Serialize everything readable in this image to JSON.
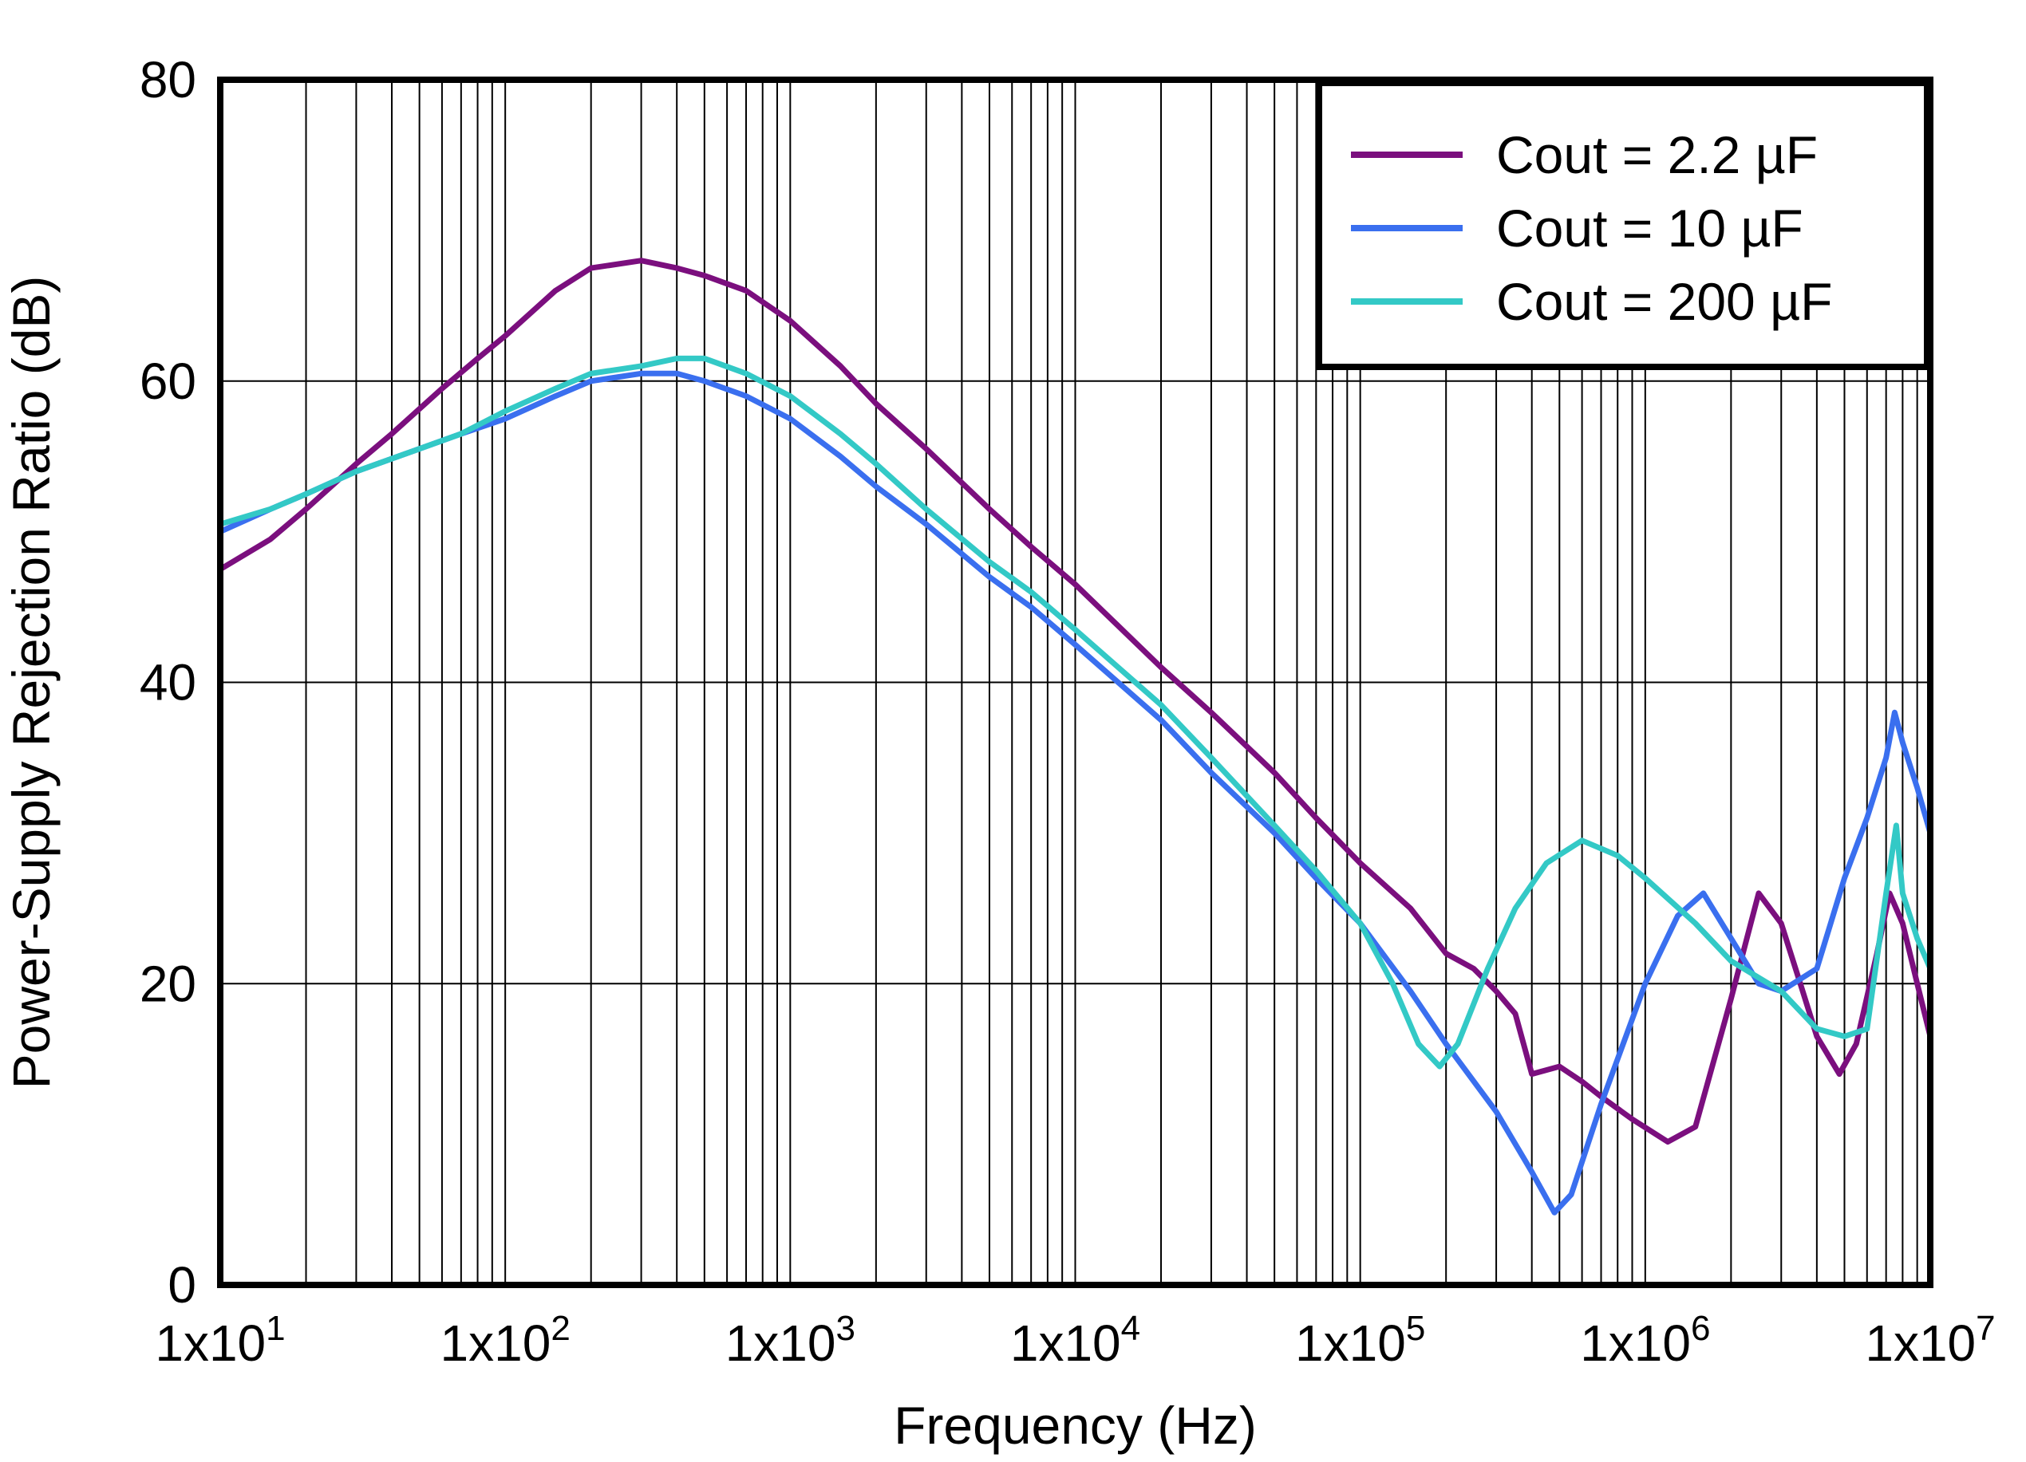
{
  "chart_data": {
    "type": "line",
    "title": "",
    "xlabel": "Frequency (Hz)",
    "ylabel": "Power-Supply Rejection Ratio (dB)",
    "xscale": "log",
    "xlim": [
      10,
      10000000
    ],
    "ylim": [
      0,
      80
    ],
    "grid": true,
    "legend_position": "top-right",
    "x_ticks": [
      {
        "value": 10,
        "base": "1x10",
        "exp": "1"
      },
      {
        "value": 100,
        "base": "1x10",
        "exp": "2"
      },
      {
        "value": 1000,
        "base": "1x10",
        "exp": "3"
      },
      {
        "value": 10000,
        "base": "1x10",
        "exp": "4"
      },
      {
        "value": 100000,
        "base": "1x10",
        "exp": "5"
      },
      {
        "value": 1000000,
        "base": "1x10",
        "exp": "6"
      },
      {
        "value": 10000000,
        "base": "1x10",
        "exp": "7"
      }
    ],
    "y_ticks": [
      {
        "value": 0,
        "label": "0"
      },
      {
        "value": 20,
        "label": "20"
      },
      {
        "value": 40,
        "label": "40"
      },
      {
        "value": 60,
        "label": "60"
      },
      {
        "value": 80,
        "label": "80"
      }
    ],
    "series": [
      {
        "name": "Cout = 2.2 µF",
        "color": "#7B0F7E",
        "points": [
          [
            10,
            47.5
          ],
          [
            15,
            49.5
          ],
          [
            20,
            51.5
          ],
          [
            30,
            54.5
          ],
          [
            40,
            56.5
          ],
          [
            60,
            59.5
          ],
          [
            80,
            61.5
          ],
          [
            100,
            63
          ],
          [
            150,
            66
          ],
          [
            200,
            67.5
          ],
          [
            300,
            68
          ],
          [
            400,
            67.5
          ],
          [
            500,
            67
          ],
          [
            700,
            66
          ],
          [
            1000,
            64
          ],
          [
            1500,
            61
          ],
          [
            2000,
            58.5
          ],
          [
            3000,
            55.5
          ],
          [
            5000,
            51.5
          ],
          [
            7000,
            49
          ],
          [
            10000,
            46.5
          ],
          [
            20000,
            41
          ],
          [
            30000,
            38
          ],
          [
            50000,
            34
          ],
          [
            70000,
            31
          ],
          [
            100000,
            28
          ],
          [
            150000,
            25
          ],
          [
            200000,
            22
          ],
          [
            250000,
            21
          ],
          [
            300000,
            19.5
          ],
          [
            350000,
            18
          ],
          [
            400000,
            14
          ],
          [
            500000,
            14.5
          ],
          [
            600000,
            13.5
          ],
          [
            700000,
            12.5
          ],
          [
            900000,
            11
          ],
          [
            1200000,
            9.5
          ],
          [
            1500000,
            10.5
          ],
          [
            2000000,
            19
          ],
          [
            2500000,
            26
          ],
          [
            3000000,
            24
          ],
          [
            3500000,
            20
          ],
          [
            4000000,
            16.5
          ],
          [
            4800000,
            14
          ],
          [
            5500000,
            16
          ],
          [
            6500000,
            22
          ],
          [
            7200000,
            26
          ],
          [
            8000000,
            24
          ],
          [
            9000000,
            20
          ],
          [
            10000000,
            16.5
          ]
        ]
      },
      {
        "name": "Cout = 10 µF",
        "color": "#3A6FEF",
        "points": [
          [
            10,
            50
          ],
          [
            15,
            51.5
          ],
          [
            20,
            52.5
          ],
          [
            30,
            54
          ],
          [
            50,
            55.5
          ],
          [
            70,
            56.5
          ],
          [
            100,
            57.5
          ],
          [
            150,
            59
          ],
          [
            200,
            60
          ],
          [
            300,
            60.5
          ],
          [
            400,
            60.5
          ],
          [
            500,
            60
          ],
          [
            700,
            59
          ],
          [
            1000,
            57.5
          ],
          [
            1500,
            55
          ],
          [
            2000,
            53
          ],
          [
            3000,
            50.5
          ],
          [
            5000,
            47
          ],
          [
            7000,
            45
          ],
          [
            10000,
            42.5
          ],
          [
            20000,
            37.5
          ],
          [
            30000,
            34
          ],
          [
            50000,
            30
          ],
          [
            70000,
            27
          ],
          [
            100000,
            24
          ],
          [
            150000,
            19.5
          ],
          [
            200000,
            16
          ],
          [
            300000,
            11.5
          ],
          [
            400000,
            7.5
          ],
          [
            480000,
            4.8
          ],
          [
            550000,
            6
          ],
          [
            700000,
            12
          ],
          [
            1000000,
            20
          ],
          [
            1300000,
            24.5
          ],
          [
            1600000,
            26
          ],
          [
            2000000,
            23
          ],
          [
            2500000,
            20
          ],
          [
            3000000,
            19.5
          ],
          [
            4000000,
            21
          ],
          [
            5000000,
            27
          ],
          [
            6000000,
            31
          ],
          [
            7000000,
            35
          ],
          [
            7500000,
            38
          ],
          [
            8000000,
            36
          ],
          [
            9000000,
            33
          ],
          [
            10000000,
            30
          ]
        ]
      },
      {
        "name": "Cout = 200 µF",
        "color": "#33C9C6",
        "points": [
          [
            10,
            50.5
          ],
          [
            15,
            51.5
          ],
          [
            20,
            52.5
          ],
          [
            30,
            54
          ],
          [
            50,
            55.5
          ],
          [
            70,
            56.5
          ],
          [
            100,
            58
          ],
          [
            150,
            59.5
          ],
          [
            200,
            60.5
          ],
          [
            300,
            61
          ],
          [
            400,
            61.5
          ],
          [
            500,
            61.5
          ],
          [
            700,
            60.5
          ],
          [
            1000,
            59
          ],
          [
            1500,
            56.5
          ],
          [
            2000,
            54.5
          ],
          [
            3000,
            51.5
          ],
          [
            5000,
            48
          ],
          [
            7000,
            46
          ],
          [
            10000,
            43.5
          ],
          [
            20000,
            38.5
          ],
          [
            30000,
            35
          ],
          [
            50000,
            30.5
          ],
          [
            70000,
            27.5
          ],
          [
            100000,
            24
          ],
          [
            130000,
            20
          ],
          [
            160000,
            16
          ],
          [
            190000,
            14.5
          ],
          [
            220000,
            16
          ],
          [
            280000,
            21
          ],
          [
            350000,
            25
          ],
          [
            450000,
            28
          ],
          [
            600000,
            29.5
          ],
          [
            800000,
            28.5
          ],
          [
            1000000,
            27
          ],
          [
            1500000,
            24
          ],
          [
            2000000,
            21.5
          ],
          [
            3000000,
            19.5
          ],
          [
            4000000,
            17
          ],
          [
            5000000,
            16.5
          ],
          [
            6000000,
            17
          ],
          [
            7000000,
            26
          ],
          [
            7600000,
            30.5
          ],
          [
            8000000,
            26
          ],
          [
            9000000,
            23
          ],
          [
            10000000,
            21
          ]
        ]
      }
    ]
  }
}
